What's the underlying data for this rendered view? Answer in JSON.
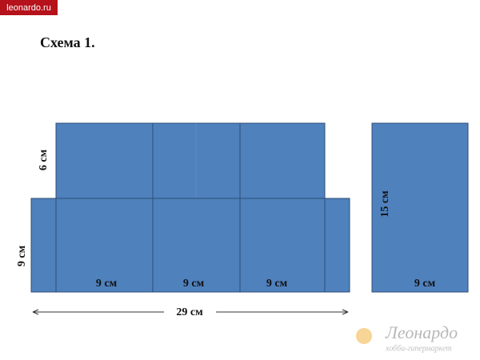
{
  "badge": "leonardo.ru",
  "title": "Схема 1.",
  "labels": {
    "top_height": "6 см",
    "bottom_height": "9 см",
    "width_1": "9 см",
    "width_2": "9 см",
    "width_3": "9 см",
    "total_width": "29 см",
    "side_height": "15 см",
    "side_width": "9 см"
  },
  "logo": {
    "name": "Леонардо",
    "tagline": "хобби-гипермаркет"
  }
}
